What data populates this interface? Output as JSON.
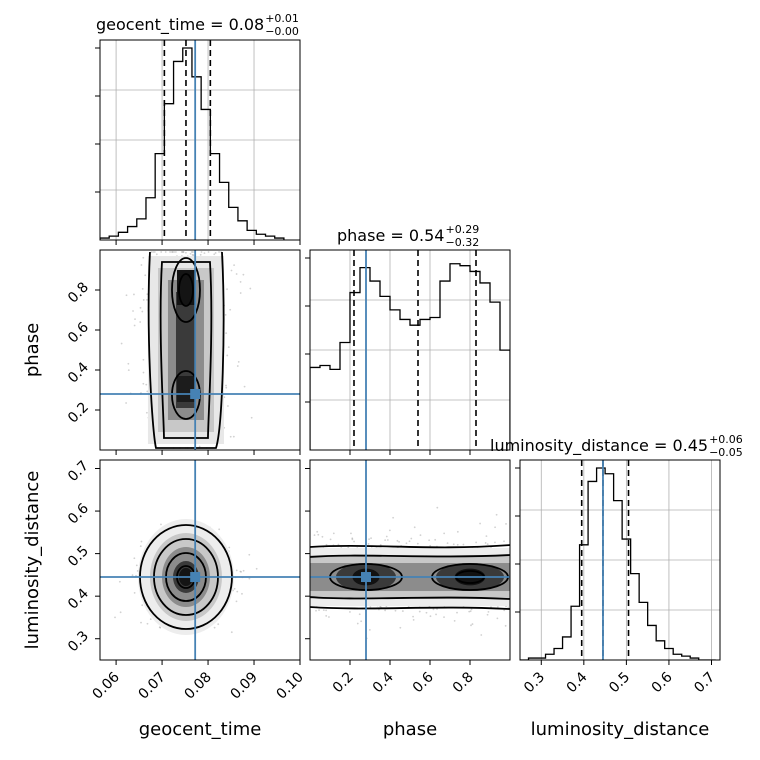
{
  "chart_data": {
    "type": "corner",
    "parameters": [
      "geocent_time",
      "phase",
      "luminosity_distance"
    ],
    "titles": [
      {
        "param": "geocent_time",
        "text": "geocent_time = 0.08",
        "plus": "+0.01",
        "minus": "−0.00"
      },
      {
        "param": "phase",
        "text": "phase = 0.54",
        "plus": "+0.29",
        "minus": "−0.32"
      },
      {
        "param": "luminosity_distance",
        "text": "luminosity_distance = 0.45",
        "plus": "+0.06",
        "minus": "−0.05"
      }
    ],
    "axis_labels": [
      "geocent_time",
      "phase",
      "luminosity_distance"
    ],
    "ranges": {
      "geocent_time": [
        0.0565,
        0.1
      ],
      "phase": [
        0.0,
        1.0
      ],
      "luminosity_distance": [
        0.25,
        0.72
      ]
    },
    "ticks": {
      "geocent_time": [
        0.06,
        0.07,
        0.08,
        0.09,
        0.1
      ],
      "geocent_time_labels": [
        "0.06",
        "0.07",
        "0.08",
        "0.09",
        "0.10"
      ],
      "phase": [
        0.2,
        0.4,
        0.6,
        0.8
      ],
      "phase_labels": [
        "0.2",
        "0.4",
        "0.6",
        "0.8"
      ],
      "luminosity_distance": [
        0.3,
        0.4,
        0.5,
        0.6,
        0.7
      ],
      "luminosity_distance_labels": [
        "0.3",
        "0.4",
        "0.5",
        "0.6",
        "0.7"
      ]
    },
    "truths": {
      "geocent_time": 0.0772,
      "phase": 0.28,
      "luminosity_distance": 0.445
    },
    "quantiles": {
      "geocent_time": [
        0.0705,
        0.0752,
        0.0805
      ],
      "phase": [
        0.22,
        0.54,
        0.83
      ],
      "luminosity_distance": [
        0.395,
        0.445,
        0.505
      ]
    },
    "histograms": {
      "geocent_time": {
        "edges": [
          0.0565,
          0.0585,
          0.0605,
          0.0625,
          0.0645,
          0.0665,
          0.0685,
          0.0705,
          0.0725,
          0.0745,
          0.0765,
          0.0785,
          0.0805,
          0.0825,
          0.0845,
          0.0865,
          0.0885,
          0.0905,
          0.0925,
          0.0945,
          0.0965
        ],
        "counts": [
          0.01,
          0.02,
          0.04,
          0.07,
          0.11,
          0.22,
          0.45,
          0.71,
          0.93,
          1.0,
          0.85,
          0.68,
          0.45,
          0.3,
          0.17,
          0.1,
          0.05,
          0.03,
          0.02,
          0.01
        ]
      },
      "phase": {
        "edges": [
          0.0,
          0.05,
          0.1,
          0.15,
          0.2,
          0.25,
          0.3,
          0.35,
          0.4,
          0.45,
          0.5,
          0.55,
          0.6,
          0.65,
          0.7,
          0.75,
          0.8,
          0.85,
          0.9,
          0.95,
          1.0
        ],
        "counts": [
          0.43,
          0.44,
          0.42,
          0.56,
          0.82,
          0.95,
          0.88,
          0.8,
          0.73,
          0.68,
          0.65,
          0.68,
          0.69,
          0.88,
          0.97,
          0.96,
          0.93,
          0.87,
          0.77,
          0.52
        ]
      },
      "luminosity_distance": {
        "edges": [
          0.25,
          0.27,
          0.29,
          0.31,
          0.33,
          0.35,
          0.37,
          0.39,
          0.41,
          0.43,
          0.45,
          0.47,
          0.49,
          0.51,
          0.53,
          0.55,
          0.57,
          0.59,
          0.61,
          0.63,
          0.65,
          0.67,
          0.69,
          0.71
        ],
        "counts": [
          0.0,
          0.01,
          0.01,
          0.03,
          0.06,
          0.12,
          0.28,
          0.6,
          0.93,
          1.0,
          0.97,
          0.83,
          0.63,
          0.45,
          0.3,
          0.18,
          0.1,
          0.06,
          0.03,
          0.02,
          0.01,
          0.0,
          0.0
        ]
      }
    },
    "grid": true
  }
}
